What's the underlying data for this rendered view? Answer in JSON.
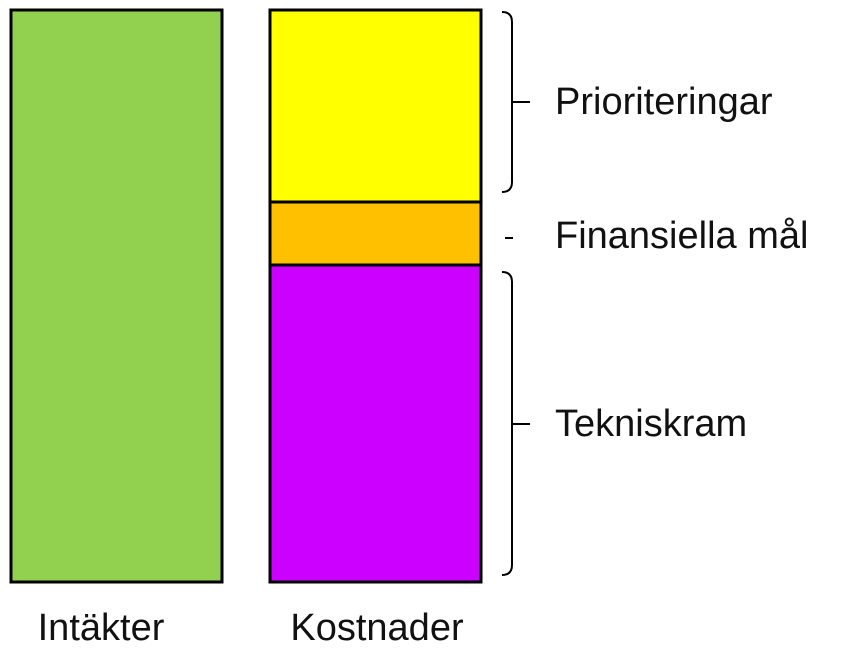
{
  "columns": [
    {
      "label": "Intäkter"
    },
    {
      "label": "Kostnader"
    }
  ],
  "segments": [
    {
      "label": "Prioriteringar"
    },
    {
      "label": "Finansiella mål"
    },
    {
      "label": "Tekniskram"
    }
  ]
}
